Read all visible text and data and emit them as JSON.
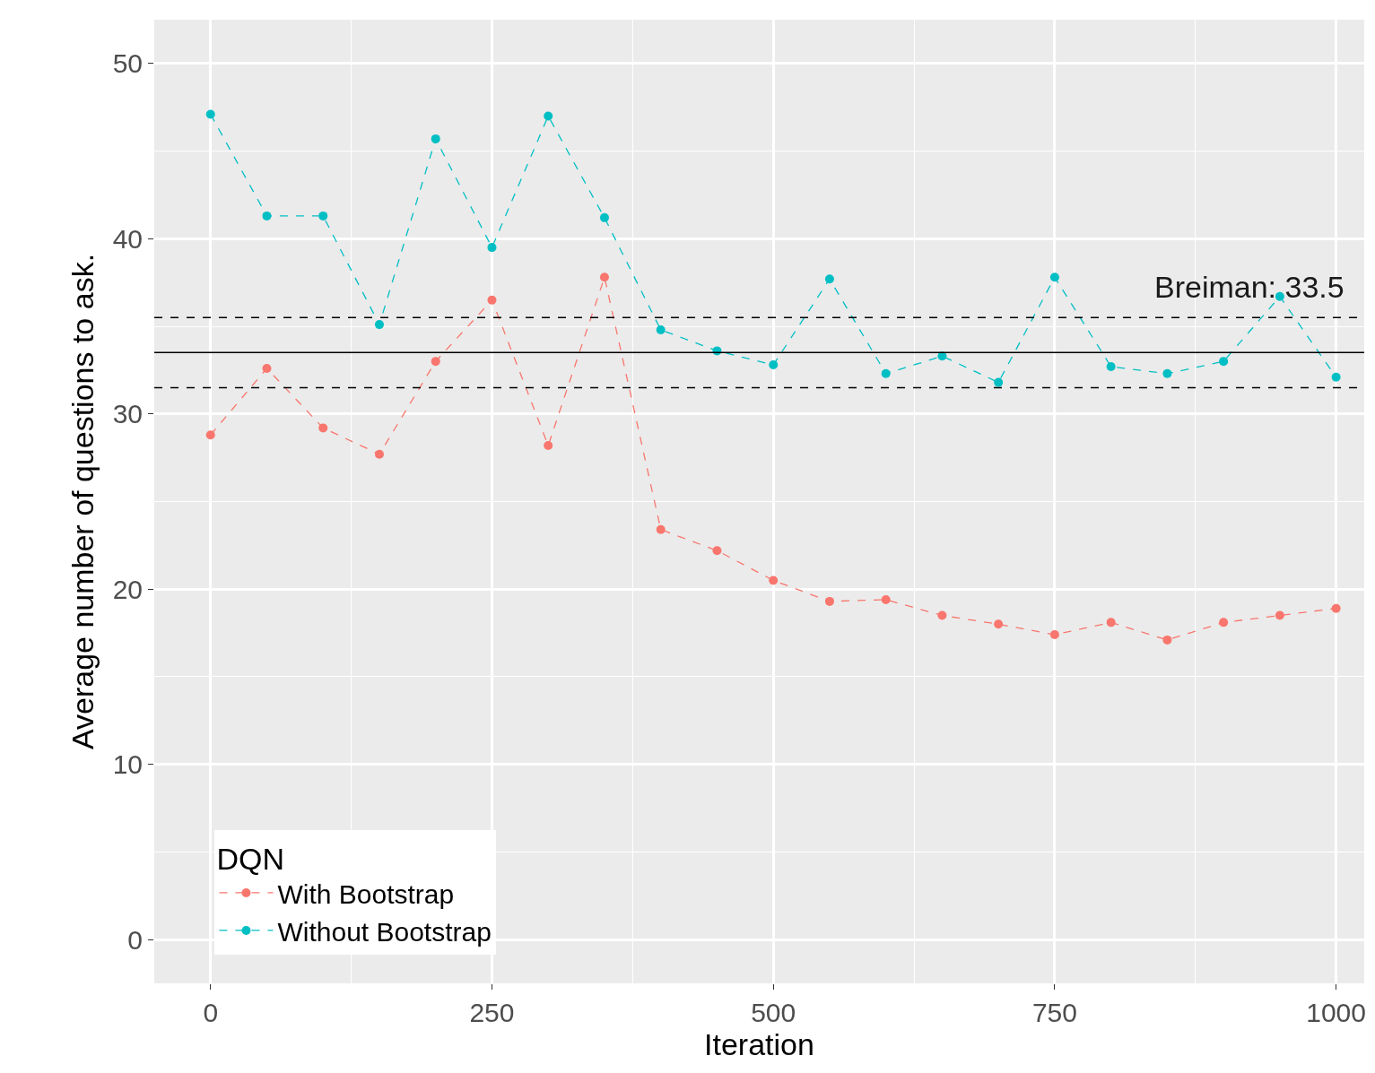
{
  "chart_data": {
    "type": "line",
    "xlabel": "Iteration",
    "ylabel": "Average number of questions to ask.",
    "legend_title": "DQN",
    "x": [
      0,
      50,
      100,
      150,
      200,
      250,
      300,
      350,
      400,
      450,
      500,
      550,
      600,
      650,
      700,
      750,
      800,
      850,
      900,
      950,
      1000
    ],
    "series": [
      {
        "name": "With Bootstrap",
        "color": "#f8766d",
        "values": [
          28.8,
          32.6,
          29.2,
          27.7,
          33.0,
          36.5,
          28.2,
          37.8,
          23.4,
          22.2,
          20.5,
          19.3,
          19.4,
          18.5,
          18.0,
          17.4,
          18.1,
          17.1,
          18.1,
          18.5,
          18.9
        ]
      },
      {
        "name": "Without Bootstrap",
        "color": "#00bfc4",
        "values": [
          47.1,
          41.3,
          41.3,
          35.1,
          45.7,
          39.5,
          47.0,
          41.2,
          34.8,
          33.6,
          32.8,
          37.7,
          32.3,
          33.3,
          31.8,
          37.8,
          32.7,
          32.3,
          33.0,
          36.7,
          32.1
        ]
      }
    ],
    "ref_lines": [
      {
        "axis": "y",
        "value": 33.5,
        "color": "#000000",
        "line_style": "solid",
        "label": "Breiman: 33.5"
      },
      {
        "axis": "y",
        "value": 35.5,
        "color": "#000000",
        "line_style": "dashed"
      },
      {
        "axis": "y",
        "value": 31.5,
        "color": "#000000",
        "line_style": "dashed"
      }
    ],
    "xlim": [
      -50,
      1025
    ],
    "ylim": [
      -2.5,
      52.5
    ],
    "xticks": [
      0,
      250,
      500,
      750,
      1000
    ],
    "yticks": [
      0,
      10,
      20,
      30,
      40,
      50
    ],
    "grid": true,
    "legend": "bottom left",
    "marker": "circle",
    "line_style": "dashed"
  }
}
